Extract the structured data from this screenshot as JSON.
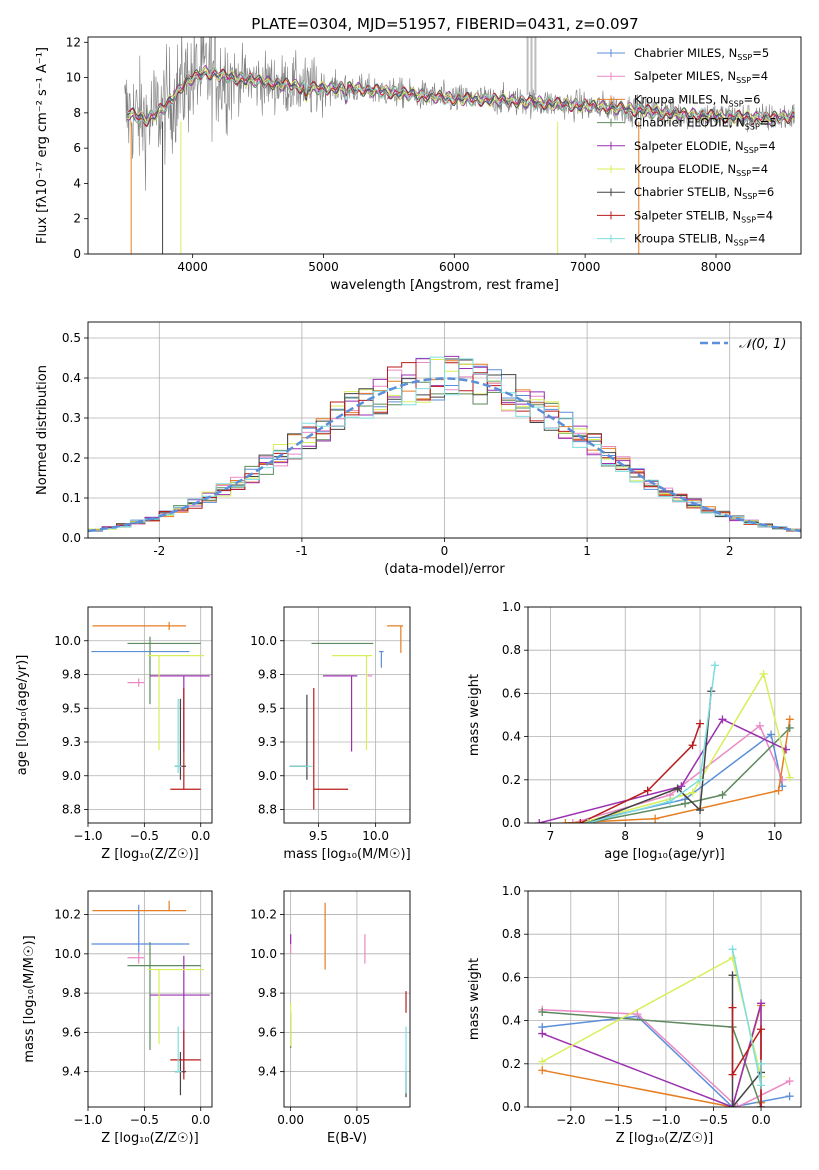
{
  "figure": {
    "title": "PLATE=0304, MJD=51957, FIBERID=0431, z=0.097"
  },
  "colors": {
    "chabrier_miles": "#5b8fd9",
    "salpeter_miles": "#e98ac5",
    "kroupa_miles": "#e67e22",
    "chabrier_elodie": "#5f8a5f",
    "salpeter_elodie": "#9b30b0",
    "kroupa_elodie": "#d8ef5a",
    "chabrier_stelib": "#444444",
    "salpeter_stelib": "#b81c1c",
    "kroupa_stelib": "#7fdde0",
    "data_grey": "#7f7f7f",
    "normal_dashed": "#5b8fd9"
  },
  "chart_data": [
    {
      "id": "spectrum",
      "type": "line",
      "title": "PLATE=0304, MJD=51957, FIBERID=0431, z=0.097",
      "xlabel": "wavelength [Angstrom, rest frame]",
      "ylabel": "Flux [fλ10⁻¹⁷ erg cm⁻² s⁻¹ A⁻¹]",
      "xlim": [
        3200,
        8650
      ],
      "ylim": [
        0,
        12.3
      ],
      "xticks": [
        4000,
        5000,
        6000,
        7000,
        8000
      ],
      "yticks": [
        0,
        2,
        4,
        6,
        8,
        10,
        12
      ],
      "grid": false,
      "legend_placement": "right",
      "legend": [
        "Chabrier MILES, N_SSP=5",
        "Salpeter MILES, N_SSP=4",
        "Kroupa MILES, N_SSP=6",
        "Chabrier ELODIE, N_SSP=5",
        "Salpeter ELODIE, N_SSP=4",
        "Kroupa ELODIE, N_SSP=4",
        "Chabrier STELIB, N_SSP=6",
        "Salpeter STELIB, N_SSP=4",
        "Kroupa STELIB, N_SSP=4"
      ],
      "continuum": {
        "x": [
          3500,
          3650,
          3800,
          3950,
          4100,
          4300,
          4600,
          4900,
          5200,
          5600,
          6000,
          6400,
          6800,
          7200,
          7600,
          8000,
          8400,
          8600
        ],
        "y": [
          8.0,
          7.6,
          8.4,
          9.8,
          10.3,
          10.0,
          9.7,
          9.4,
          9.4,
          9.1,
          8.8,
          8.7,
          8.5,
          8.3,
          8.0,
          7.8,
          7.7,
          7.8
        ]
      }
    },
    {
      "id": "residuals",
      "type": "line",
      "xlabel": "(data-model)/error",
      "ylabel": "Normed distribution",
      "xlim": [
        -2.5,
        2.5
      ],
      "ylim": [
        0,
        0.54
      ],
      "xticks": [
        -2,
        -1,
        0,
        1,
        2
      ],
      "yticks": [
        0.0,
        0.1,
        0.2,
        0.3,
        0.4,
        0.5
      ],
      "grid": true,
      "legend_placement": "top-right",
      "legend": [
        "𝒩(0, 1)"
      ]
    },
    {
      "id": "age_vs_Z",
      "type": "scatter",
      "xlabel": "Z [log₁₀(Z/Z☉)]",
      "ylabel": "age  [log₁₀(age/yr)]",
      "xlim": [
        -1.0,
        0.1
      ],
      "ylim": [
        8.65,
        10.25
      ],
      "xticks": [
        -1.0,
        -0.5,
        0.0
      ],
      "yticks": [
        8.75,
        9.0,
        9.25,
        9.5,
        9.75,
        10.0
      ],
      "grid": true,
      "points": [
        {
          "model": "chabrier_miles",
          "x": -0.55,
          "xerr": [
            0.42,
            0.45
          ],
          "y": 9.92,
          "yerr": [
            0.0,
            0.0
          ]
        },
        {
          "model": "salpeter_miles",
          "x": -0.55,
          "xerr": [
            0.1,
            0.05
          ],
          "y": 9.69,
          "yerr": [
            0.03,
            0.03
          ]
        },
        {
          "model": "kroupa_miles",
          "x": -0.28,
          "xerr": [
            0.68,
            0.15
          ],
          "y": 10.11,
          "yerr": [
            0.03,
            0.03
          ]
        },
        {
          "model": "chabrier_elodie",
          "x": -0.45,
          "xerr": [
            0.2,
            0.45
          ],
          "y": 9.98,
          "yerr": [
            0.45,
            0.05
          ]
        },
        {
          "model": "salpeter_elodie",
          "x": -0.15,
          "xerr": [
            0.3,
            0.23
          ],
          "y": 9.74,
          "yerr": [
            0.56,
            0.0
          ]
        },
        {
          "model": "kroupa_elodie",
          "x": -0.37,
          "xerr": [
            0.1,
            0.4
          ],
          "y": 9.89,
          "yerr": [
            0.7,
            0.0
          ]
        },
        {
          "model": "chabrier_stelib",
          "x": -0.18,
          "xerr": [
            0.05,
            0.05
          ],
          "y": 9.07,
          "yerr": [
            0.1,
            0.5
          ]
        },
        {
          "model": "salpeter_stelib",
          "x": -0.15,
          "xerr": [
            0.12,
            0.15
          ],
          "y": 8.9,
          "yerr": [
            0.0,
            0.75
          ]
        },
        {
          "model": "kroupa_stelib",
          "x": -0.2,
          "xerr": [
            0.03,
            0.03
          ],
          "y": 9.07,
          "yerr": [
            0.05,
            0.5
          ]
        }
      ]
    },
    {
      "id": "age_vs_mass",
      "type": "scatter",
      "xlabel": "mass [log₁₀(M/M☉)]",
      "xlim": [
        9.2,
        10.3
      ],
      "ylim": [
        8.65,
        10.25
      ],
      "xticks": [
        9.5,
        10.0
      ],
      "yticks": [
        8.75,
        9.0,
        9.25,
        9.5,
        9.75,
        10.0
      ],
      "grid": true,
      "points": [
        {
          "model": "chabrier_miles",
          "x": 10.05,
          "xerr": [
            0.02,
            0.02
          ],
          "y": 9.92,
          "yerr": [
            0.12,
            0.0
          ]
        },
        {
          "model": "salpeter_miles",
          "x": 9.95,
          "xerr": [
            0.02,
            0.02
          ],
          "y": 9.74,
          "yerr": [
            0.0,
            0.0
          ]
        },
        {
          "model": "kroupa_miles",
          "x": 10.22,
          "xerr": [
            0.12,
            0.02
          ],
          "y": 10.11,
          "yerr": [
            0.2,
            0.0
          ]
        },
        {
          "model": "chabrier_elodie",
          "x": 9.94,
          "xerr": [
            0.5,
            0.04
          ],
          "y": 9.98,
          "yerr": [
            0.0,
            0.0
          ]
        },
        {
          "model": "salpeter_elodie",
          "x": 9.79,
          "xerr": [
            0.25,
            0.05
          ],
          "y": 9.74,
          "yerr": [
            0.56,
            0.0
          ]
        },
        {
          "model": "kroupa_elodie",
          "x": 9.92,
          "xerr": [
            0.3,
            0.05
          ],
          "y": 9.89,
          "yerr": [
            0.7,
            0.0
          ]
        },
        {
          "model": "chabrier_stelib",
          "x": 9.4,
          "xerr": [
            0.15,
            0.0
          ],
          "y": 9.07,
          "yerr": [
            0.1,
            0.53
          ]
        },
        {
          "model": "salpeter_stelib",
          "x": 9.46,
          "xerr": [
            0.0,
            0.3
          ],
          "y": 8.9,
          "yerr": [
            0.15,
            0.75
          ]
        },
        {
          "model": "kroupa_stelib",
          "x": 9.4,
          "xerr": [
            0.15,
            0.05
          ],
          "y": 9.07,
          "yerr": [
            0.0,
            0.0
          ]
        }
      ]
    },
    {
      "id": "massweight_vs_age",
      "type": "line",
      "xlabel": "age  [log₁₀(age/yr)]",
      "ylabel": "mass weight",
      "xlim": [
        6.7,
        10.35
      ],
      "ylim": [
        0,
        1.0
      ],
      "xticks": [
        7,
        8,
        9,
        10
      ],
      "yticks": [
        0.0,
        0.2,
        0.4,
        0.6,
        0.8,
        1.0
      ],
      "grid": true,
      "series": [
        {
          "model": "chabrier_miles",
          "x": [
            7.4,
            8.8,
            9.95,
            10.1
          ],
          "y": [
            0.0,
            0.11,
            0.41,
            0.17
          ]
        },
        {
          "model": "salpeter_miles",
          "x": [
            7.3,
            8.6,
            9.8,
            10.1
          ],
          "y": [
            0.0,
            0.13,
            0.45,
            0.2
          ]
        },
        {
          "model": "kroupa_miles",
          "x": [
            7.2,
            8.4,
            10.05,
            10.2
          ],
          "y": [
            0.0,
            0.02,
            0.15,
            0.48
          ]
        },
        {
          "model": "chabrier_elodie",
          "x": [
            7.5,
            8.8,
            9.3,
            10.2
          ],
          "y": [
            0.0,
            0.09,
            0.13,
            0.44
          ]
        },
        {
          "model": "salpeter_elodie",
          "x": [
            6.85,
            8.75,
            9.3,
            10.15
          ],
          "y": [
            0.0,
            0.17,
            0.48,
            0.34
          ]
        },
        {
          "model": "kroupa_elodie",
          "x": [
            7.4,
            8.9,
            9.85,
            10.2
          ],
          "y": [
            0.0,
            0.14,
            0.69,
            0.21
          ]
        },
        {
          "model": "chabrier_stelib",
          "x": [
            7.5,
            8.7,
            9.0,
            9.15
          ],
          "y": [
            0.0,
            0.16,
            0.06,
            0.61
          ]
        },
        {
          "model": "salpeter_stelib",
          "x": [
            7.4,
            8.3,
            8.9,
            9.0
          ],
          "y": [
            0.0,
            0.15,
            0.36,
            0.46
          ]
        },
        {
          "model": "kroupa_stelib",
          "x": [
            7.5,
            8.6,
            9.0,
            9.2
          ],
          "y": [
            0.0,
            0.1,
            0.2,
            0.73
          ]
        }
      ]
    },
    {
      "id": "mass_vs_Z",
      "type": "scatter",
      "xlabel": "Z [log₁₀(Z/Z☉)]",
      "ylabel": "mass [log₁₀(M/M☉)]",
      "xlim": [
        -1.0,
        0.1
      ],
      "ylim": [
        9.22,
        10.32
      ],
      "xticks": [
        -1.0,
        -0.5,
        0.0
      ],
      "yticks": [
        9.4,
        9.6,
        9.8,
        10.0,
        10.2
      ],
      "grid": true,
      "points": [
        {
          "model": "chabrier_miles",
          "x": -0.55,
          "xerr": [
            0.42,
            0.45
          ],
          "y": 10.05,
          "yerr": [
            0.05,
            0.2
          ]
        },
        {
          "model": "salpeter_miles",
          "x": -0.55,
          "xerr": [
            0.1,
            0.05
          ],
          "y": 9.98,
          "yerr": [
            0.03,
            0.03
          ]
        },
        {
          "model": "kroupa_miles",
          "x": -0.28,
          "xerr": [
            0.68,
            0.15
          ],
          "y": 10.22,
          "yerr": [
            0.0,
            0.05
          ]
        },
        {
          "model": "chabrier_elodie",
          "x": -0.45,
          "xerr": [
            0.2,
            0.45
          ],
          "y": 9.94,
          "yerr": [
            0.43,
            0.12
          ]
        },
        {
          "model": "salpeter_elodie",
          "x": -0.15,
          "xerr": [
            0.3,
            0.23
          ],
          "y": 9.79,
          "yerr": [
            0.4,
            0.2
          ]
        },
        {
          "model": "kroupa_elodie",
          "x": -0.37,
          "xerr": [
            0.1,
            0.4
          ],
          "y": 9.92,
          "yerr": [
            0.38,
            0.0
          ]
        },
        {
          "model": "chabrier_stelib",
          "x": -0.18,
          "xerr": [
            0.05,
            0.05
          ],
          "y": 9.4,
          "yerr": [
            0.12,
            0.1
          ]
        },
        {
          "model": "salpeter_stelib",
          "x": -0.15,
          "xerr": [
            0.12,
            0.15
          ],
          "y": 9.46,
          "yerr": [
            0.1,
            0.15
          ]
        },
        {
          "model": "kroupa_stelib",
          "x": -0.2,
          "xerr": [
            0.03,
            0.03
          ],
          "y": 9.4,
          "yerr": [
            0.0,
            0.23
          ]
        }
      ]
    },
    {
      "id": "mass_vs_ebv",
      "type": "scatter",
      "xlabel": "E(B-V)",
      "xlim": [
        -0.005,
        0.09
      ],
      "ylim": [
        9.22,
        10.32
      ],
      "xticks": [
        0.0,
        0.05
      ],
      "yticks": [
        9.4,
        9.6,
        9.8,
        10.0,
        10.2
      ],
      "grid": true,
      "points": [
        {
          "model": "chabrier_miles",
          "x": 0.0,
          "y": 10.05,
          "yerr": [
            0.0,
            0.0
          ]
        },
        {
          "model": "salpeter_miles",
          "x": 0.0,
          "y": 10.05,
          "yerr": [
            0.05,
            0.05
          ]
        },
        {
          "model": "kroupa_miles",
          "x": 0.026,
          "y": 10.1,
          "yerr": [
            0.18,
            0.16
          ]
        },
        {
          "model": "chabrier_elodie",
          "x": 0.0,
          "y": 9.7,
          "yerr": [
            0.18,
            0.0
          ]
        },
        {
          "model": "salpeter_elodie",
          "x": 0.0,
          "y": 10.05,
          "yerr": [
            0.0,
            0.05
          ]
        },
        {
          "model": "kroupa_elodie",
          "x": 0.0,
          "y": 9.75,
          "yerr": [
            0.22,
            0.0
          ]
        },
        {
          "model": "chabrier_stelib",
          "x": 0.087,
          "y": 9.4,
          "yerr": [
            0.13,
            0.0
          ]
        },
        {
          "model": "salpeter_stelib",
          "x": 0.087,
          "y": 9.7,
          "yerr": [
            0.0,
            0.11
          ]
        },
        {
          "model": "kroupa_stelib",
          "x": 0.087,
          "y": 9.46,
          "yerr": [
            0.17,
            0.17
          ]
        },
        {
          "model": "salpeter_miles",
          "x": 0.056,
          "y": 10.05,
          "yerr": [
            0.1,
            0.05
          ]
        }
      ]
    },
    {
      "id": "massweight_vs_Z",
      "type": "line",
      "xlabel": "Z [log₁₀(Z/Z☉)]",
      "ylabel": "mass weight",
      "xlim": [
        -2.45,
        0.42
      ],
      "ylim": [
        0,
        1.0
      ],
      "xticks": [
        -2.0,
        -1.5,
        -1.0,
        -0.5,
        0.0
      ],
      "yticks": [
        0.0,
        0.2,
        0.4,
        0.6,
        0.8,
        1.0
      ],
      "grid": true,
      "series": [
        {
          "model": "chabrier_miles",
          "x": [
            -2.3,
            -1.3,
            -0.3,
            0.3
          ],
          "y": [
            0.37,
            0.42,
            0.0,
            0.05
          ]
        },
        {
          "model": "salpeter_miles",
          "x": [
            -2.3,
            -1.3,
            -0.25,
            0.3
          ],
          "y": [
            0.45,
            0.43,
            0.0,
            0.12
          ]
        },
        {
          "model": "kroupa_miles",
          "x": [
            -2.3,
            -0.3,
            0.0,
            0.0
          ],
          "y": [
            0.17,
            0.0,
            0.47,
            0.02
          ]
        },
        {
          "model": "chabrier_elodie",
          "x": [
            -2.3,
            -0.3,
            0.0
          ],
          "y": [
            0.44,
            0.37,
            0.0
          ]
        },
        {
          "model": "salpeter_elodie",
          "x": [
            -2.3,
            -0.3,
            0.0,
            0.0
          ],
          "y": [
            0.34,
            0.0,
            0.48,
            0.0
          ]
        },
        {
          "model": "kroupa_elodie",
          "x": [
            -2.3,
            -0.3,
            0.0
          ],
          "y": [
            0.21,
            0.69,
            0.14
          ]
        },
        {
          "model": "chabrier_stelib",
          "x": [
            -0.3,
            -0.3,
            0.0
          ],
          "y": [
            0.61,
            0.0,
            0.16
          ]
        },
        {
          "model": "salpeter_stelib",
          "x": [
            -0.3,
            -0.3,
            0.0,
            0.0
          ],
          "y": [
            0.46,
            0.15,
            0.36,
            0.0
          ]
        },
        {
          "model": "kroupa_stelib",
          "x": [
            -0.3,
            0.0,
            0.0
          ],
          "y": [
            0.73,
            0.1,
            0.2
          ]
        }
      ]
    }
  ]
}
